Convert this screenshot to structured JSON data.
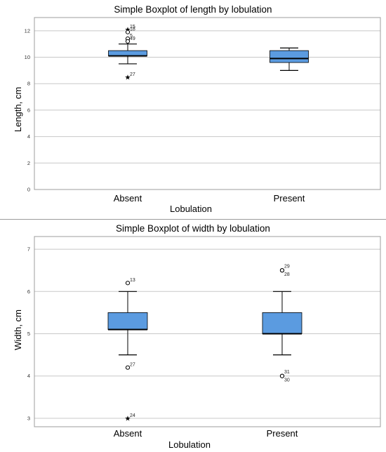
{
  "colors": {
    "box": "#5b9be0",
    "frame": "#9c9c9c",
    "grid": "#c8c8c8",
    "line": "#000000"
  },
  "chart_data": [
    {
      "type": "box",
      "title": "Simple Boxplot of length by lobulation",
      "xlabel": "Lobulation",
      "ylabel": "Length, cm",
      "ylim": [
        0,
        13
      ],
      "yticks": [
        0,
        2,
        4,
        6,
        8,
        10,
        12
      ],
      "yticks_labels": [
        "0",
        "2",
        "4",
        "6",
        "8",
        "10",
        "12"
      ],
      "grid": true,
      "categories": [
        "Absent",
        "Present"
      ],
      "boxes": [
        {
          "category": "Absent",
          "whisker_low": 9.5,
          "q1": 10.1,
          "median": 10.1,
          "q3": 10.5,
          "whisker_high": 11.0,
          "outliers": [
            {
              "value": 12.1,
              "label": "15",
              "marker": "star"
            },
            {
              "value": 11.9,
              "label": "18",
              "marker": "circle"
            },
            {
              "value": 11.4,
              "label": "5",
              "marker": "circle"
            },
            {
              "value": 11.2,
              "label": "49",
              "marker": "circle"
            },
            {
              "value": 8.5,
              "label": "27",
              "marker": "star"
            }
          ]
        },
        {
          "category": "Present",
          "whisker_low": 9.0,
          "q1": 9.6,
          "median": 9.9,
          "q3": 10.5,
          "whisker_high": 10.7,
          "outliers": []
        }
      ]
    },
    {
      "type": "box",
      "title": "Simple Boxplot of width by lobulation",
      "xlabel": "Lobulation",
      "ylabel": "Width, cm",
      "ylim": [
        2.8,
        7.3
      ],
      "yticks": [
        3,
        4,
        5,
        6,
        7
      ],
      "yticks_labels": [
        "3",
        "4",
        "5",
        "6",
        "7"
      ],
      "grid": true,
      "categories": [
        "Absent",
        "Present"
      ],
      "boxes": [
        {
          "category": "Absent",
          "whisker_low": 4.5,
          "q1": 5.1,
          "median": 5.1,
          "q3": 5.5,
          "whisker_high": 6.0,
          "outliers": [
            {
              "value": 6.2,
              "label": "13",
              "marker": "circle"
            },
            {
              "value": 4.2,
              "label": "27",
              "marker": "circle"
            },
            {
              "value": 3.0,
              "label": "24",
              "marker": "star"
            }
          ]
        },
        {
          "category": "Present",
          "whisker_low": 4.5,
          "q1": 5.0,
          "median": 5.0,
          "q3": 5.5,
          "whisker_high": 6.0,
          "outliers": [
            {
              "value": 6.5,
              "label": "29",
              "marker": "circle",
              "label_pos": "above"
            },
            {
              "value": 6.5,
              "label": "28",
              "marker": "circle",
              "label_pos": "below"
            },
            {
              "value": 4.0,
              "label": "31",
              "marker": "circle",
              "label_pos": "above"
            },
            {
              "value": 4.0,
              "label": "30",
              "marker": "circle",
              "label_pos": "below"
            }
          ]
        }
      ]
    }
  ]
}
